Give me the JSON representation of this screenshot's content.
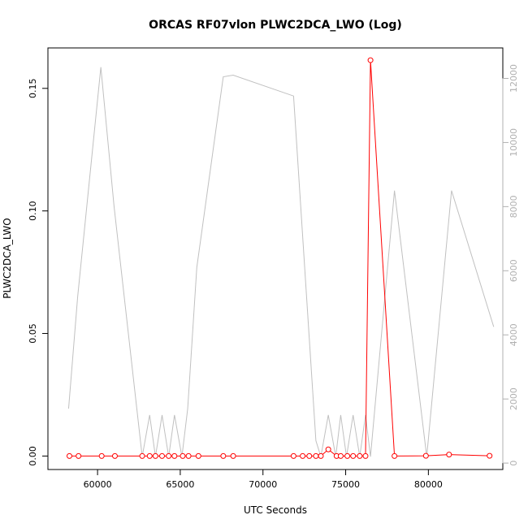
{
  "chart_data": {
    "type": "line",
    "title": "ORCAS RF07vlon PLWC2DCA_LWO (Log)",
    "xlabel": "UTC Seconds",
    "ylabel": "PLWC2DCA_LWO",
    "xlim": [
      57000,
      84500
    ],
    "ylim": [
      -0.0055,
      0.1665
    ],
    "y2lim": [
      -200,
      12950
    ],
    "x_ticks": [
      60000,
      65000,
      70000,
      75000,
      80000
    ],
    "x_tick_labels": [
      "60000",
      "65000",
      "70000",
      "75000",
      "80000"
    ],
    "y_ticks": [
      0.0,
      0.05,
      0.1,
      0.15
    ],
    "y_tick_labels": [
      "0.00",
      "0.05",
      "0.10",
      "0.15"
    ],
    "y2_ticks": [
      0,
      2000,
      4000,
      6000,
      8000,
      10000,
      12000
    ],
    "y2_tick_labels": [
      "0",
      "2000",
      "4000",
      "6000",
      "8000",
      "10000",
      "12000"
    ],
    "grid": false,
    "series": [
      {
        "axis": "left",
        "color": "#ff0000",
        "marker": "open-circle",
        "x": [
          58300,
          58850,
          60250,
          61050,
          62700,
          63150,
          63500,
          63900,
          64300,
          64650,
          65150,
          65500,
          66100,
          67600,
          68200,
          71850,
          72400,
          72800,
          73200,
          73500,
          73950,
          74450,
          74700,
          75100,
          75450,
          75850,
          76200,
          76500,
          77950,
          79850,
          81250,
          83700
        ],
        "y": [
          0,
          0,
          0,
          0,
          0,
          0,
          0,
          0,
          0,
          0,
          0,
          0,
          0,
          0,
          0,
          0,
          0,
          0,
          0,
          0,
          0.0027,
          0,
          0,
          0,
          0,
          0,
          0,
          0.1615,
          0,
          0.0001,
          0.0006,
          0.0001
        ]
      },
      {
        "axis": "right",
        "color": "#c0c0c0",
        "marker": "none",
        "x": [
          58250,
          58800,
          60200,
          61000,
          62700,
          63150,
          63500,
          63900,
          64300,
          64650,
          65100,
          65450,
          66000,
          67600,
          68200,
          71850,
          73200,
          73500,
          73950,
          74400,
          74700,
          75050,
          75450,
          75850,
          76200,
          76500,
          77950,
          79900,
          81400,
          83950
        ],
        "y": [
          1700,
          5200,
          12350,
          8000,
          200,
          1500,
          200,
          1500,
          200,
          1500,
          200,
          1700,
          6100,
          12050,
          12100,
          11450,
          700,
          200,
          1500,
          200,
          1500,
          200,
          1500,
          200,
          1500,
          200,
          8500,
          200,
          8500,
          4250
        ]
      }
    ]
  }
}
